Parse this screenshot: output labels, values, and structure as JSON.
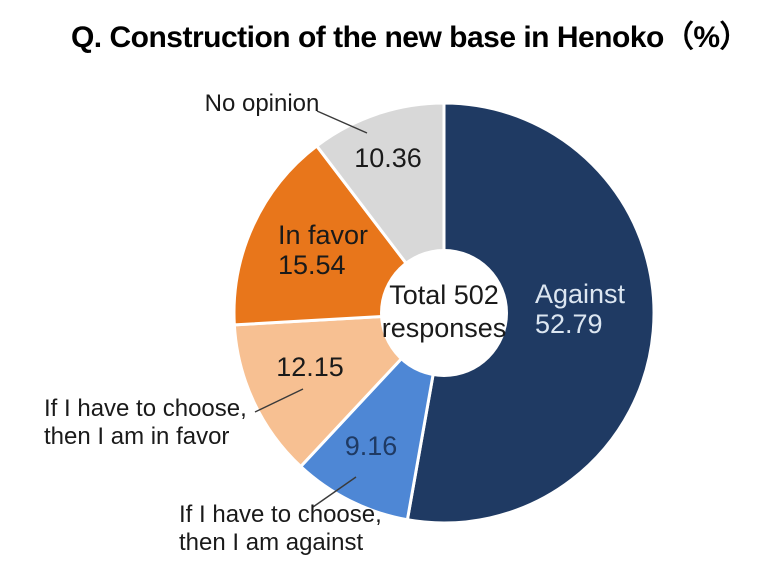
{
  "chart_data": {
    "type": "pie",
    "title": "Q. Construction of the new base in Henoko（%）",
    "unit": "%",
    "total_responses": 502,
    "center_label": {
      "line1": "Total 502",
      "line2": "responses"
    },
    "donut": true,
    "start_angle_deg": 0,
    "direction": "clockwise",
    "slices": [
      {
        "label": "Against",
        "value": 52.79,
        "color": "#1f3a63",
        "value_text_color": "#dce6f1"
      },
      {
        "label": "If I have to choose, then I am against",
        "value": 9.16,
        "color": "#4e87d5",
        "value_text_color": "#1f3a63"
      },
      {
        "label": "If I have to choose, then I am in favor",
        "value": 12.15,
        "color": "#f7c092",
        "value_text_color": "#1a1a1a"
      },
      {
        "label": "In favor",
        "value": 15.54,
        "color": "#e8761b",
        "value_text_color": "#1a1a1a"
      },
      {
        "label": "No opinion",
        "value": 10.36,
        "color": "#d8d8d8",
        "value_text_color": "#1a1a1a"
      }
    ]
  },
  "colors": {
    "background": "#ffffff",
    "title_text": "#000000",
    "leader_line": "#3a3a3a",
    "slice_border": "#ffffff",
    "donut_hole": "#ffffff"
  }
}
